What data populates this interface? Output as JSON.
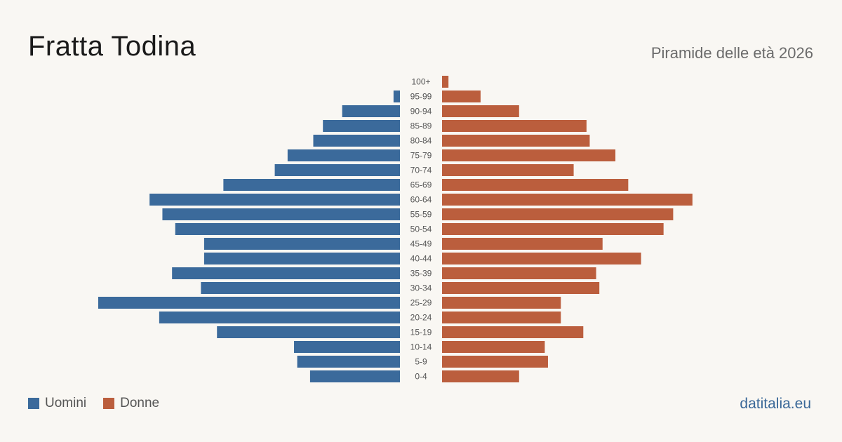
{
  "header": {
    "title": "Fratta Todina",
    "subtitle": "Piramide delle età 2026"
  },
  "legend": {
    "male_label": "Uomini",
    "female_label": "Donne"
  },
  "footer": {
    "source": "datitalia.eu"
  },
  "colors": {
    "male": "#3b6a9b",
    "female": "#bb5e3d",
    "background": "#f9f7f3",
    "label": "#555555"
  },
  "chart_data": {
    "type": "bar",
    "orientation": "horizontal",
    "title": "Fratta Todina",
    "subtitle": "Piramide delle età 2026",
    "categories": [
      "100+",
      "95-99",
      "90-94",
      "85-89",
      "80-84",
      "75-79",
      "70-74",
      "65-69",
      "60-64",
      "55-59",
      "50-54",
      "45-49",
      "40-44",
      "35-39",
      "30-34",
      "25-29",
      "20-24",
      "15-19",
      "10-14",
      "5-9",
      "0-4"
    ],
    "series": [
      {
        "name": "Uomini",
        "values": [
          0,
          1,
          9,
          12,
          13.5,
          17.5,
          19.5,
          27.5,
          39,
          37,
          35,
          30.5,
          30.5,
          35.5,
          31,
          47,
          37.5,
          28.5,
          16.5,
          16,
          14
        ]
      },
      {
        "name": "Donne",
        "values": [
          1,
          6,
          12,
          22.5,
          23,
          27,
          20.5,
          29,
          39,
          36,
          34.5,
          25,
          31,
          24,
          24.5,
          18.5,
          18.5,
          22,
          16,
          16.5,
          12
        ]
      }
    ],
    "legend_position": "bottom-left",
    "grid": false
  }
}
